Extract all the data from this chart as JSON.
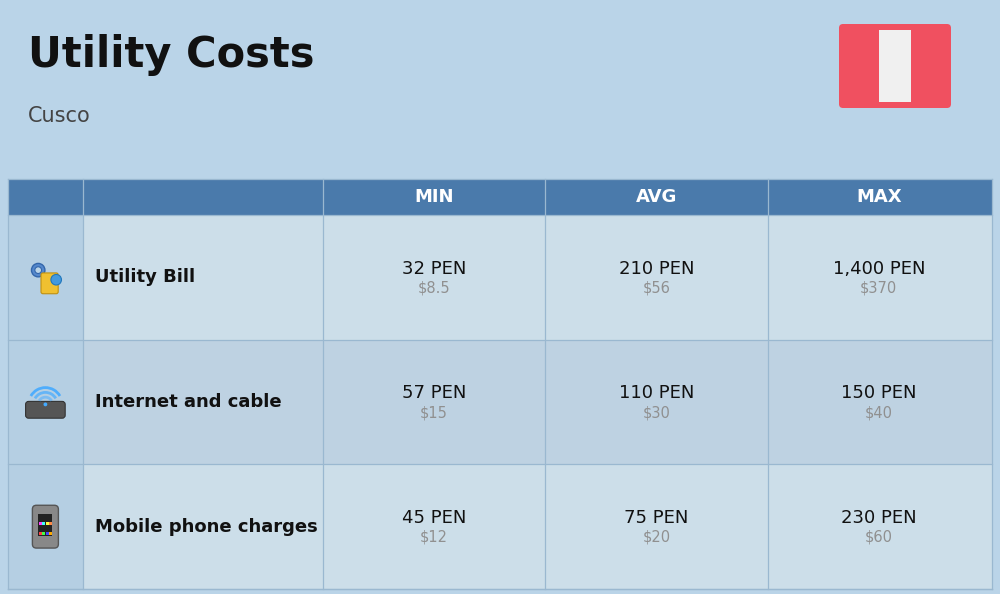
{
  "title": "Utility Costs",
  "subtitle": "Cusco",
  "background_color": "#bad4e8",
  "header_color": "#4a7aab",
  "header_text_color": "#ffffff",
  "row_color_1": "#ccdee9",
  "row_color_2": "#bed2e2",
  "icon_col_color": "#b5cfe3",
  "col_headers": [
    "MIN",
    "AVG",
    "MAX"
  ],
  "rows": [
    {
      "label": "Utility Bill",
      "min_pen": "32 PEN",
      "min_usd": "$8.5",
      "avg_pen": "210 PEN",
      "avg_usd": "$56",
      "max_pen": "1,400 PEN",
      "max_usd": "$370"
    },
    {
      "label": "Internet and cable",
      "min_pen": "57 PEN",
      "min_usd": "$15",
      "avg_pen": "110 PEN",
      "avg_usd": "$30",
      "max_pen": "150 PEN",
      "max_usd": "$40"
    },
    {
      "label": "Mobile phone charges",
      "min_pen": "45 PEN",
      "min_usd": "$12",
      "avg_pen": "75 PEN",
      "avg_usd": "$20",
      "max_pen": "230 PEN",
      "max_usd": "$60"
    }
  ],
  "flag_red": "#f05060",
  "flag_white": "#f0f0f0",
  "label_fontsize": 13,
  "value_fontsize": 13,
  "usd_fontsize": 10.5,
  "header_fontsize": 13,
  "title_fontsize": 30,
  "subtitle_fontsize": 15,
  "line_color": "#9ab8d0",
  "text_dark": "#111111",
  "text_gray": "#909090"
}
